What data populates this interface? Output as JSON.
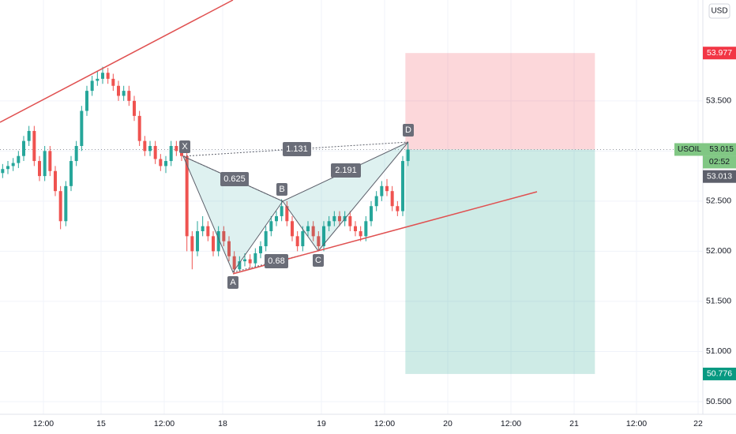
{
  "chart_data": {
    "type": "candlestick",
    "currency": "USD",
    "xlim": [
      0,
      133.5
    ],
    "ylim": [
      50.374,
      54.506
    ],
    "grid": true,
    "up_color": "#26a69a",
    "down_color": "#ef5350",
    "xticks": [
      {
        "value": 8.25,
        "label": "12:00"
      },
      {
        "value": 19.2,
        "label": "15"
      },
      {
        "value": 31.2,
        "label": "12:00"
      },
      {
        "value": 42.3,
        "label": "18"
      },
      {
        "value": 61.05,
        "label": "19"
      },
      {
        "value": 73.05,
        "label": "12:00"
      },
      {
        "value": 85.05,
        "label": "20"
      },
      {
        "value": 97.05,
        "label": "12:00"
      },
      {
        "value": 109.05,
        "label": "21"
      },
      {
        "value": 120.9,
        "label": "12:00"
      },
      {
        "value": 132.6,
        "label": "22"
      }
    ],
    "yticks": [
      {
        "value": 50.5,
        "label": "50.500"
      },
      {
        "value": 51,
        "label": "51.000"
      },
      {
        "value": 51.5,
        "label": "51.500"
      },
      {
        "value": 52,
        "label": "52.000"
      },
      {
        "value": 52.5,
        "label": "52.500"
      },
      {
        "value": 53,
        "label": "53.000"
      },
      {
        "value": 53.5,
        "label": "53.500"
      }
    ],
    "series": [
      {
        "name": "USOIL",
        "x": [
          0.5,
          1.5,
          2.5,
          3.5,
          4.5,
          5.5,
          6.5,
          7.5,
          8.5,
          9.5,
          10.5,
          11.5,
          12.5,
          13.5,
          14.5,
          15.5,
          16.5,
          17.5,
          18.5,
          19.5,
          20.5,
          21.5,
          22.5,
          23.5,
          24.5,
          25.5,
          26.5,
          27.5,
          28.5,
          29.5,
          30.5,
          31.5,
          32.5,
          33.5,
          34.5,
          35.5,
          36.5,
          37.5,
          38.5,
          39.5,
          40.5,
          41.5,
          42.5,
          43.5,
          44.5,
          45.5,
          46.5,
          47.5,
          48.5,
          49.5,
          50.5,
          51.5,
          52.5,
          53.5,
          54.5,
          55.5,
          56.5,
          57.5,
          58.5,
          59.5,
          60.5,
          61.5,
          62.5,
          63.5,
          64.5,
          65.5,
          66.5,
          67.5,
          68.5,
          69.5,
          70.5,
          71.5,
          72.5,
          73.5,
          74.5,
          75.5,
          76.5,
          77.5
        ],
        "open": [
          52.78,
          52.82,
          52.85,
          52.88,
          52.95,
          53.1,
          53.2,
          52.9,
          52.75,
          53.0,
          52.8,
          52.6,
          52.3,
          52.65,
          52.9,
          53.05,
          53.4,
          53.6,
          53.7,
          53.72,
          53.78,
          53.72,
          53.65,
          53.55,
          53.6,
          53.5,
          53.35,
          53.1,
          53.0,
          53.05,
          52.92,
          52.85,
          52.9,
          53.05,
          53.0,
          52.95,
          52.15,
          52.0,
          52.2,
          52.25,
          52.15,
          52.0,
          52.2,
          52.1,
          51.95,
          51.82,
          51.9,
          51.92,
          51.88,
          51.98,
          52.05,
          52.2,
          52.3,
          52.35,
          52.45,
          52.3,
          52.15,
          52.05,
          52.2,
          52.25,
          52.15,
          52.05,
          52.25,
          52.3,
          52.35,
          52.3,
          52.35,
          52.25,
          52.2,
          52.15,
          52.3,
          52.45,
          52.55,
          52.65,
          52.6,
          52.45,
          52.4,
          52.9
        ],
        "high": [
          52.87,
          52.9,
          52.93,
          53.0,
          53.15,
          53.25,
          53.25,
          52.95,
          53.05,
          53.05,
          52.85,
          52.65,
          52.7,
          52.95,
          53.1,
          53.45,
          53.65,
          53.75,
          53.8,
          53.84,
          53.83,
          53.77,
          53.7,
          53.65,
          53.65,
          53.55,
          53.4,
          53.15,
          53.1,
          53.1,
          52.97,
          52.95,
          53.1,
          53.1,
          53.08,
          53.0,
          52.2,
          52.3,
          52.35,
          52.3,
          52.2,
          52.25,
          52.25,
          52.15,
          52.0,
          51.95,
          51.98,
          51.97,
          52.03,
          52.1,
          52.25,
          52.35,
          52.4,
          52.52,
          52.5,
          52.35,
          52.2,
          52.25,
          52.3,
          52.3,
          52.2,
          52.3,
          52.35,
          52.4,
          52.4,
          52.4,
          52.4,
          52.3,
          52.25,
          52.35,
          52.5,
          52.6,
          52.7,
          52.72,
          52.65,
          52.5,
          52.95,
          53.08
        ],
        "low": [
          52.73,
          52.77,
          52.8,
          52.83,
          52.9,
          53.05,
          52.85,
          52.7,
          52.7,
          52.75,
          52.55,
          52.22,
          52.25,
          52.6,
          52.85,
          53.0,
          53.35,
          53.55,
          53.65,
          53.67,
          53.67,
          53.6,
          53.5,
          53.5,
          53.45,
          53.3,
          53.05,
          52.95,
          52.95,
          52.87,
          52.8,
          52.78,
          52.85,
          52.95,
          52.9,
          52.0,
          51.82,
          51.95,
          52.15,
          52.1,
          51.95,
          51.95,
          52.05,
          51.9,
          51.78,
          51.8,
          51.85,
          51.83,
          51.85,
          51.93,
          52.0,
          52.15,
          52.25,
          52.3,
          52.25,
          52.1,
          52.0,
          52.0,
          52.15,
          52.1,
          52.0,
          52.0,
          52.2,
          52.25,
          52.25,
          52.25,
          52.2,
          52.15,
          52.1,
          52.1,
          52.25,
          52.4,
          52.5,
          52.55,
          52.4,
          52.35,
          52.35,
          52.85
        ],
        "close": [
          52.82,
          52.85,
          52.88,
          52.95,
          53.1,
          53.2,
          52.9,
          52.75,
          53.0,
          52.8,
          52.6,
          52.3,
          52.65,
          52.9,
          53.05,
          53.4,
          53.6,
          53.7,
          53.72,
          53.78,
          53.72,
          53.65,
          53.55,
          53.6,
          53.5,
          53.35,
          53.1,
          53.0,
          53.05,
          52.92,
          52.85,
          52.9,
          53.05,
          53.0,
          52.95,
          52.15,
          52.0,
          52.2,
          52.25,
          52.15,
          52.0,
          52.2,
          52.1,
          51.95,
          51.82,
          51.9,
          51.92,
          51.88,
          51.98,
          52.05,
          52.2,
          52.3,
          52.35,
          52.45,
          52.3,
          52.15,
          52.05,
          52.2,
          52.25,
          52.15,
          52.05,
          52.25,
          52.3,
          52.35,
          52.3,
          52.35,
          52.25,
          52.2,
          52.15,
          52.3,
          52.45,
          52.55,
          52.65,
          52.6,
          52.45,
          52.4,
          52.9,
          53.015
        ]
      }
    ],
    "last_price": {
      "value": 53.015,
      "color": "#81c784"
    },
    "countdown": "02:52",
    "price_labels": [
      {
        "value": 53.977,
        "color": "#f23645"
      },
      {
        "value": 53.013,
        "color": "#5d606b"
      },
      {
        "value": 50.776,
        "color": "#089981"
      }
    ],
    "position": {
      "start": 77.0,
      "end": 113.0
    },
    "pattern": {
      "points": [
        "X",
        "A",
        "B",
        "C",
        "D"
      ],
      "ratios": [
        0.625,
        0.68,
        1.131,
        2.191
      ]
    }
  }
}
